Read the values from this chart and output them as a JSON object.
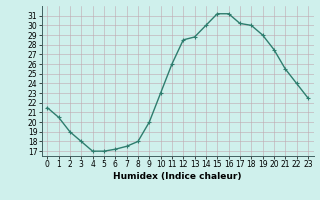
{
  "x": [
    0,
    1,
    2,
    3,
    4,
    5,
    6,
    7,
    8,
    9,
    10,
    11,
    12,
    13,
    14,
    15,
    16,
    17,
    18,
    19,
    20,
    21,
    22,
    23
  ],
  "y": [
    21.5,
    20.5,
    19.0,
    18.0,
    17.0,
    17.0,
    17.2,
    17.5,
    18.0,
    20.0,
    23.0,
    26.0,
    28.5,
    28.8,
    30.0,
    31.2,
    31.2,
    30.2,
    30.0,
    29.0,
    27.5,
    25.5,
    24.0,
    22.5
  ],
  "line_color": "#2e7d6e",
  "marker": "+",
  "markersize": 3.5,
  "linewidth": 1.0,
  "xlabel": "Humidex (Indice chaleur)",
  "ylim": [
    16.5,
    32.0
  ],
  "xlim": [
    -0.5,
    23.5
  ],
  "yticks": [
    17,
    18,
    19,
    20,
    21,
    22,
    23,
    24,
    25,
    26,
    27,
    28,
    29,
    30,
    31
  ],
  "xticks": [
    0,
    1,
    2,
    3,
    4,
    5,
    6,
    7,
    8,
    9,
    10,
    11,
    12,
    13,
    14,
    15,
    16,
    17,
    18,
    19,
    20,
    21,
    22,
    23
  ],
  "xtick_labels": [
    "0",
    "1",
    "2",
    "3",
    "4",
    "5",
    "6",
    "7",
    "8",
    "9",
    "10",
    "11",
    "12",
    "13",
    "14",
    "15",
    "16",
    "17",
    "18",
    "19",
    "20",
    "21",
    "22",
    "23"
  ],
  "bg_color": "#cff0ec",
  "grid_color": "#c0a8b0",
  "xlabel_fontsize": 6.5,
  "tick_fontsize": 5.5
}
